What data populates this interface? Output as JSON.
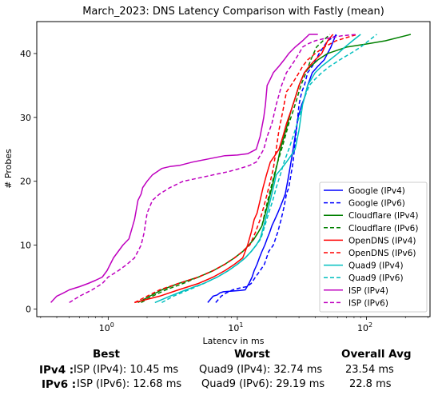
{
  "chart_data": {
    "type": "line",
    "title": "March_2023: DNS Latency Comparison with Fastly (mean)",
    "xlabel": "Latency in ms",
    "ylabel": "# Probes",
    "x_scale": "log",
    "xlim": [
      0.28,
      310
    ],
    "ylim": [
      -1.2,
      45
    ],
    "x_ticks": [
      {
        "value": 1,
        "label": "10^0"
      },
      {
        "value": 10,
        "label": "10^1"
      },
      {
        "value": 100,
        "label": "10^2"
      }
    ],
    "y_ticks": [
      0,
      10,
      20,
      30,
      40
    ],
    "grid": false,
    "legend_position": "lower-right",
    "series": [
      {
        "name": "Google (IPv4)",
        "color": "#0000ff",
        "dash": "solid",
        "x": [
          5.9,
          6.5,
          7.0,
          7.3,
          7.8,
          9.0,
          10.5,
          11.5,
          12.3,
          13.0,
          13.5,
          14.2,
          14.8,
          15.5,
          16.3,
          17.0,
          17.8,
          18.5,
          19.5,
          20.5,
          21.5,
          22.5,
          23.5,
          24.5,
          25.5,
          26.5,
          27.5,
          28.5,
          29.5,
          30.5,
          31.5,
          33.0,
          35.0,
          38.0,
          42.0,
          47.0,
          53.0,
          58.0
        ],
        "y": [
          1,
          2,
          2.2,
          2.5,
          2.7,
          2.8,
          2.9,
          3,
          4,
          5,
          6,
          7,
          8,
          9,
          10,
          11,
          12,
          13,
          14,
          15,
          16,
          17,
          18,
          20,
          22,
          24,
          26,
          28,
          30,
          31,
          32,
          33,
          35,
          37,
          38,
          39,
          41,
          43
        ]
      },
      {
        "name": "Google (IPv6)",
        "color": "#0000ff",
        "dash": "dashed",
        "x": [
          6.8,
          7.5,
          8.2,
          9.2,
          10.5,
          11.8,
          12.8,
          13.8,
          15.0,
          16.2,
          17.5,
          19.0,
          20.5,
          21.8,
          23.0,
          24.0,
          25.0,
          26.0,
          27.0,
          28.0,
          29.0,
          30.0,
          31.5,
          33.0,
          35.0,
          38.0,
          43.0,
          50.0,
          60.0
        ],
        "y": [
          1,
          2,
          2.5,
          3,
          3.3,
          3.5,
          4,
          5,
          6,
          7,
          9,
          10,
          12,
          14,
          16,
          18,
          19,
          21,
          23,
          26,
          29,
          32,
          34,
          35,
          37,
          38,
          40,
          42,
          43
        ]
      },
      {
        "name": "Cloudflare (IPv4)",
        "color": "#008000",
        "dash": "solid",
        "x": [
          1.7,
          2.1,
          2.6,
          3.5,
          5.0,
          6.5,
          8.0,
          9.5,
          11.0,
          12.3,
          13.5,
          14.5,
          15.5,
          16.5,
          17.5,
          18.5,
          19.5,
          20.5,
          21.5,
          23.0,
          24.5,
          26.0,
          28.0,
          30.0,
          33.0,
          37.0,
          42.0,
          50.0,
          70.0,
          100.0,
          140.0,
          220.0
        ],
        "y": [
          1,
          2,
          3,
          4,
          5,
          6,
          7,
          8,
          9,
          10,
          11,
          12,
          13,
          15,
          17,
          19,
          21,
          23,
          25,
          27,
          29,
          31,
          33,
          35,
          37,
          38,
          39,
          40,
          41,
          41.5,
          42,
          43
        ]
      },
      {
        "name": "Cloudflare (IPv6)",
        "color": "#008000",
        "dash": "dashed",
        "x": [
          1.8,
          2.2,
          2.8,
          3.8,
          5.0,
          6.5,
          8.0,
          9.5,
          11.0,
          12.3,
          13.5,
          14.5,
          15.5,
          16.3,
          17.2,
          18.2,
          19.3,
          20.5,
          22.0,
          23.5,
          25.0,
          27.0,
          29.0,
          31.0,
          34.0,
          37.0,
          41.0,
          46.0,
          52.0
        ],
        "y": [
          1,
          2,
          3,
          4,
          5,
          6,
          7,
          8,
          9,
          10,
          11,
          12,
          13,
          15,
          17,
          19,
          21,
          23,
          25,
          27,
          29,
          31,
          33,
          35,
          37,
          39,
          41,
          42,
          43
        ]
      },
      {
        "name": "OpenDNS (IPv4)",
        "color": "#ff0000",
        "dash": "solid",
        "x": [
          1.6,
          2.0,
          2.5,
          3.5,
          5.0,
          6.5,
          8.0,
          9.5,
          11.0,
          12.0,
          12.8,
          13.5,
          14.2,
          15.0,
          15.8,
          16.8,
          18.0,
          19.5,
          21.0,
          22.5,
          24.0,
          26.0,
          28.0,
          30.0,
          33.0,
          36.0,
          40.0,
          45.0,
          50.0,
          55.0
        ],
        "y": [
          1,
          1.5,
          2,
          3,
          4,
          5,
          6,
          7,
          8,
          10,
          12,
          14,
          15,
          17,
          19,
          21,
          23,
          24,
          25,
          27,
          29,
          31,
          33,
          35,
          37,
          38,
          39,
          40,
          42,
          43
        ]
      },
      {
        "name": "OpenDNS (IPv6)",
        "color": "#ff0000",
        "dash": "dashed",
        "x": [
          1.6,
          2.0,
          2.5,
          3.5,
          5.0,
          6.5,
          8.0,
          9.5,
          11.0,
          12.5,
          13.8,
          15.0,
          16.0,
          17.0,
          18.0,
          19.0,
          20.0,
          21.0,
          22.5,
          24.0,
          26.0,
          28.0,
          30.0,
          32.0,
          35.0,
          40.0,
          47.0,
          58.0,
          70.0,
          85.0
        ],
        "y": [
          1,
          2,
          3,
          4,
          5,
          6,
          7,
          8,
          9,
          10,
          12,
          14,
          16,
          18,
          20,
          22,
          25,
          28,
          31,
          34,
          35,
          36,
          37,
          38,
          39,
          40,
          41,
          42,
          42.5,
          43
        ]
      },
      {
        "name": "Quad9 (IPv4)",
        "color": "#00bfbf",
        "dash": "solid",
        "x": [
          2.3,
          3.0,
          4.0,
          5.5,
          7.0,
          8.5,
          10.0,
          11.5,
          12.8,
          14.0,
          15.0,
          16.0,
          17.0,
          18.0,
          19.0,
          20.0,
          22.0,
          24.0,
          26.0,
          28.0,
          30.0,
          32.0,
          35.0,
          40.0,
          45.0,
          52.0,
          60.0,
          68.0,
          78.0,
          90.0
        ],
        "y": [
          1,
          2,
          3,
          4,
          5,
          6,
          7,
          8,
          9,
          10,
          11,
          13,
          15,
          17,
          19,
          21,
          22,
          23,
          24,
          25,
          28,
          32,
          35,
          37,
          38,
          39,
          40,
          41,
          42,
          43
        ]
      },
      {
        "name": "Quad9 (IPv6)",
        "color": "#00bfbf",
        "dash": "dashed",
        "x": [
          2.6,
          3.2,
          4.2,
          5.5,
          7.0,
          8.5,
          10.0,
          11.5,
          12.8,
          14.0,
          15.2,
          16.3,
          17.5,
          18.8,
          20.0,
          21.5,
          23.0,
          25.0,
          27.0,
          29.0,
          31.0,
          33.0,
          36.0,
          40.0,
          45.0,
          52.0,
          62.0,
          75.0,
          90.0,
          120.0
        ],
        "y": [
          1,
          2,
          3,
          4,
          5,
          6,
          7,
          8,
          9,
          10,
          11,
          13,
          15,
          17,
          19,
          21,
          23,
          25,
          27,
          29,
          31,
          33,
          35,
          36,
          37,
          38,
          39,
          40,
          41,
          43
        ]
      },
      {
        "name": "ISP (IPv4)",
        "color": "#bf00bf",
        "dash": "solid",
        "x": [
          0.36,
          0.4,
          0.45,
          0.5,
          0.6,
          0.7,
          0.8,
          0.9,
          0.98,
          1.1,
          1.3,
          1.45,
          1.6,
          1.7,
          1.8,
          1.85,
          2.0,
          2.2,
          2.6,
          3.0,
          3.6,
          4.5,
          6.0,
          8.0,
          10.0,
          12.0,
          14.0,
          15.0,
          16.0,
          16.5,
          17.0,
          18.0,
          19.0,
          21.0,
          23.0,
          25.0,
          28.0,
          32.0,
          36.0,
          42.0
        ],
        "y": [
          1,
          2,
          2.5,
          3,
          3.5,
          4,
          4.5,
          5,
          6,
          8,
          10,
          11,
          14,
          17,
          18,
          19,
          20,
          21,
          22,
          22.3,
          22.5,
          23,
          23.5,
          24,
          24.1,
          24.3,
          25,
          27,
          30,
          32,
          35,
          36,
          37,
          38,
          39,
          40,
          41,
          42,
          43,
          43
        ]
      },
      {
        "name": "ISP (IPv6)",
        "color": "#bf00bf",
        "dash": "dashed",
        "x": [
          0.5,
          0.6,
          0.75,
          0.9,
          1.0,
          1.2,
          1.4,
          1.6,
          1.8,
          1.9,
          2.0,
          2.2,
          2.5,
          3.0,
          3.8,
          5.0,
          6.5,
          8.5,
          10.5,
          12.5,
          14.0,
          15.0,
          16.0,
          17.0,
          18.5,
          20.0,
          22.0,
          24.0,
          26.0,
          28.0,
          30.0,
          32.0,
          35.0,
          40.0,
          46.0,
          54.0,
          65.0,
          85.0
        ],
        "y": [
          1,
          2,
          3,
          4,
          5,
          6,
          7,
          8,
          10,
          12,
          15,
          17,
          18,
          19,
          20,
          20.5,
          21,
          21.5,
          22,
          22.5,
          23,
          24,
          25,
          27,
          29,
          32,
          35,
          37,
          38,
          39,
          40,
          41,
          41.5,
          42,
          42.3,
          42.5,
          42.8,
          43
        ]
      }
    ]
  },
  "summary": {
    "headers": {
      "best": "Best",
      "worst": "Worst",
      "avg": "Overall Avg"
    },
    "rows": [
      {
        "label": "IPv4 :",
        "best": "ISP (IPv4): 10.45 ms",
        "worst": "Quad9 (IPv4): 32.74 ms",
        "avg": "23.54 ms"
      },
      {
        "label": "IPv6 :",
        "best": "ISP (IPv6): 12.68 ms",
        "worst": "Quad9 (IPv6): 29.19 ms",
        "avg": "22.8 ms"
      }
    ]
  }
}
